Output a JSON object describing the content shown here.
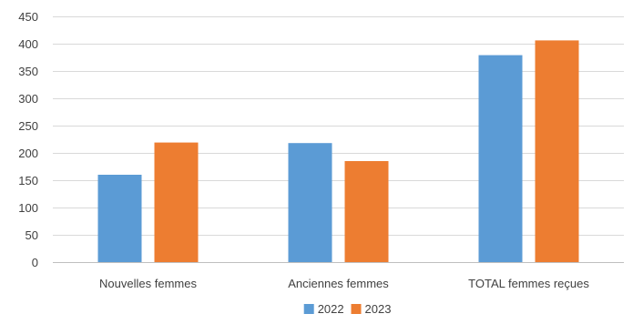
{
  "chart_data": {
    "type": "bar",
    "title": "",
    "xlabel": "",
    "ylabel": "",
    "categories": [
      "Nouvelles femmes",
      "Anciennes femmes",
      "TOTAL femmes reçues"
    ],
    "series": [
      {
        "name": "2022",
        "values": [
          160,
          218,
          379
        ],
        "color": "#5B9BD5"
      },
      {
        "name": "2023",
        "values": [
          219,
          185,
          406
        ],
        "color": "#ED7D31"
      }
    ],
    "ylim": [
      0,
      450
    ],
    "yticks": [
      0,
      50,
      100,
      150,
      200,
      250,
      300,
      350,
      400,
      450
    ],
    "grid": true,
    "legend": "bottom"
  }
}
